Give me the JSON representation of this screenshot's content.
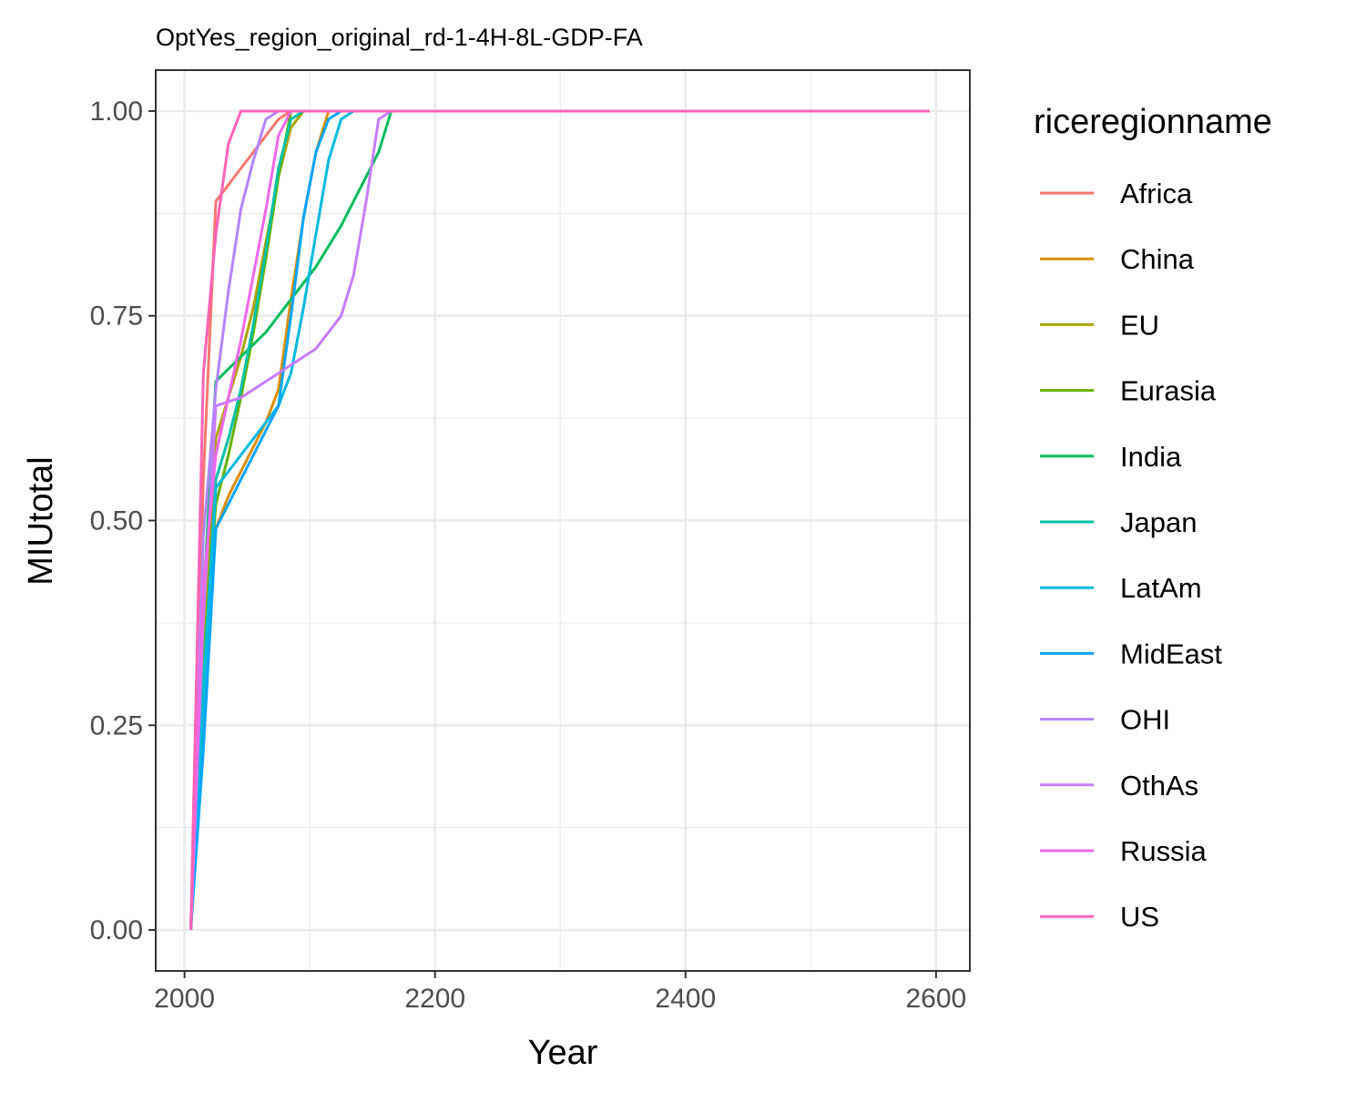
{
  "chart_data": {
    "type": "line",
    "title": "OptYes_region_original_rd-1-4H-8L-GDP-FA",
    "xlabel": "Year",
    "ylabel": "MIUtotal",
    "xlim": [
      1977,
      2627
    ],
    "ylim": [
      -0.05,
      1.05
    ],
    "x_ticks": [
      2000,
      2200,
      2400,
      2600
    ],
    "x_tick_labels": [
      "2000",
      "2200",
      "2400",
      "2600"
    ],
    "y_ticks": [
      0,
      0.25,
      0.5,
      0.75,
      1.0
    ],
    "y_tick_labels": [
      "0.00",
      "0.25",
      "0.50",
      "0.75",
      "1.00"
    ],
    "grid": true,
    "legend_title": "riceregionname",
    "legend_position": "right",
    "series": [
      {
        "name": "Africa",
        "color": "#F8766D",
        "x": [
          2005,
          2015,
          2025,
          2035,
          2045,
          2055,
          2065,
          2075,
          2085,
          2595
        ],
        "y": [
          0,
          0.55,
          0.89,
          0.91,
          0.93,
          0.95,
          0.97,
          0.99,
          1.0,
          1.0
        ]
      },
      {
        "name": "China",
        "color": "#DB8E00",
        "x": [
          2005,
          2015,
          2025,
          2035,
          2045,
          2055,
          2065,
          2075,
          2085,
          2095,
          2105,
          2115,
          2125,
          2595
        ],
        "y": [
          0,
          0.25,
          0.49,
          0.53,
          0.56,
          0.59,
          0.62,
          0.66,
          0.77,
          0.87,
          0.95,
          1.0,
          1.0,
          1.0
        ]
      },
      {
        "name": "EU",
        "color": "#AEA200",
        "x": [
          2005,
          2015,
          2025,
          2035,
          2045,
          2055,
          2065,
          2075,
          2085,
          2095,
          2595
        ],
        "y": [
          0,
          0.35,
          0.6,
          0.65,
          0.7,
          0.76,
          0.84,
          0.92,
          0.98,
          1.0,
          1.0
        ]
      },
      {
        "name": "Eurasia",
        "color": "#64B200",
        "x": [
          2005,
          2015,
          2025,
          2035,
          2045,
          2055,
          2065,
          2075,
          2085,
          2595
        ],
        "y": [
          0,
          0.32,
          0.52,
          0.58,
          0.65,
          0.73,
          0.82,
          0.92,
          1.0,
          1.0
        ]
      },
      {
        "name": "India",
        "color": "#00BD5C",
        "x": [
          2005,
          2015,
          2025,
          2045,
          2065,
          2085,
          2105,
          2125,
          2145,
          2155,
          2165,
          2595
        ],
        "y": [
          0,
          0.4,
          0.67,
          0.7,
          0.73,
          0.77,
          0.81,
          0.86,
          0.92,
          0.95,
          1.0,
          1.0
        ]
      },
      {
        "name": "Japan",
        "color": "#00C1A7",
        "x": [
          2005,
          2015,
          2025,
          2035,
          2045,
          2055,
          2065,
          2075,
          2085,
          2095,
          2595
        ],
        "y": [
          0,
          0.3,
          0.55,
          0.6,
          0.66,
          0.74,
          0.83,
          0.93,
          0.99,
          1.0,
          1.0
        ]
      },
      {
        "name": "LatAm",
        "color": "#00BADE",
        "x": [
          2005,
          2015,
          2025,
          2035,
          2045,
          2055,
          2065,
          2075,
          2085,
          2095,
          2105,
          2115,
          2125,
          2135,
          2595
        ],
        "y": [
          0,
          0.28,
          0.54,
          0.56,
          0.58,
          0.6,
          0.62,
          0.64,
          0.68,
          0.76,
          0.85,
          0.94,
          0.99,
          1.0,
          1.0
        ]
      },
      {
        "name": "MidEast",
        "color": "#00A6FF",
        "x": [
          2005,
          2015,
          2025,
          2035,
          2045,
          2055,
          2065,
          2075,
          2085,
          2095,
          2105,
          2115,
          2125,
          2595
        ],
        "y": [
          0,
          0.22,
          0.49,
          0.52,
          0.55,
          0.58,
          0.61,
          0.64,
          0.75,
          0.87,
          0.95,
          0.99,
          1.0,
          1.0
        ]
      },
      {
        "name": "OHI",
        "color": "#B385FF",
        "x": [
          2005,
          2015,
          2025,
          2035,
          2045,
          2055,
          2065,
          2075,
          2595
        ],
        "y": [
          0,
          0.48,
          0.66,
          0.78,
          0.88,
          0.94,
          0.99,
          1.0,
          1.0
        ]
      },
      {
        "name": "OthAs",
        "color": "#C77CFF",
        "x": [
          2005,
          2015,
          2025,
          2035,
          2045,
          2055,
          2065,
          2075,
          2085,
          2095,
          2105,
          2115,
          2125,
          2135,
          2145,
          2155,
          2165,
          2595
        ],
        "y": [
          0,
          0.38,
          0.64,
          0.645,
          0.65,
          0.66,
          0.67,
          0.68,
          0.69,
          0.7,
          0.71,
          0.73,
          0.75,
          0.8,
          0.89,
          0.99,
          1.0,
          1.0
        ]
      },
      {
        "name": "Russia",
        "color": "#EF67EB",
        "x": [
          2005,
          2015,
          2025,
          2035,
          2045,
          2055,
          2065,
          2075,
          2085,
          2595
        ],
        "y": [
          0,
          0.42,
          0.58,
          0.65,
          0.72,
          0.8,
          0.88,
          0.97,
          1.0,
          1.0
        ]
      },
      {
        "name": "US",
        "color": "#FF63B6",
        "x": [
          2005,
          2015,
          2025,
          2035,
          2045,
          2595
        ],
        "y": [
          0,
          0.68,
          0.85,
          0.96,
          1.0,
          1.0
        ]
      }
    ]
  }
}
